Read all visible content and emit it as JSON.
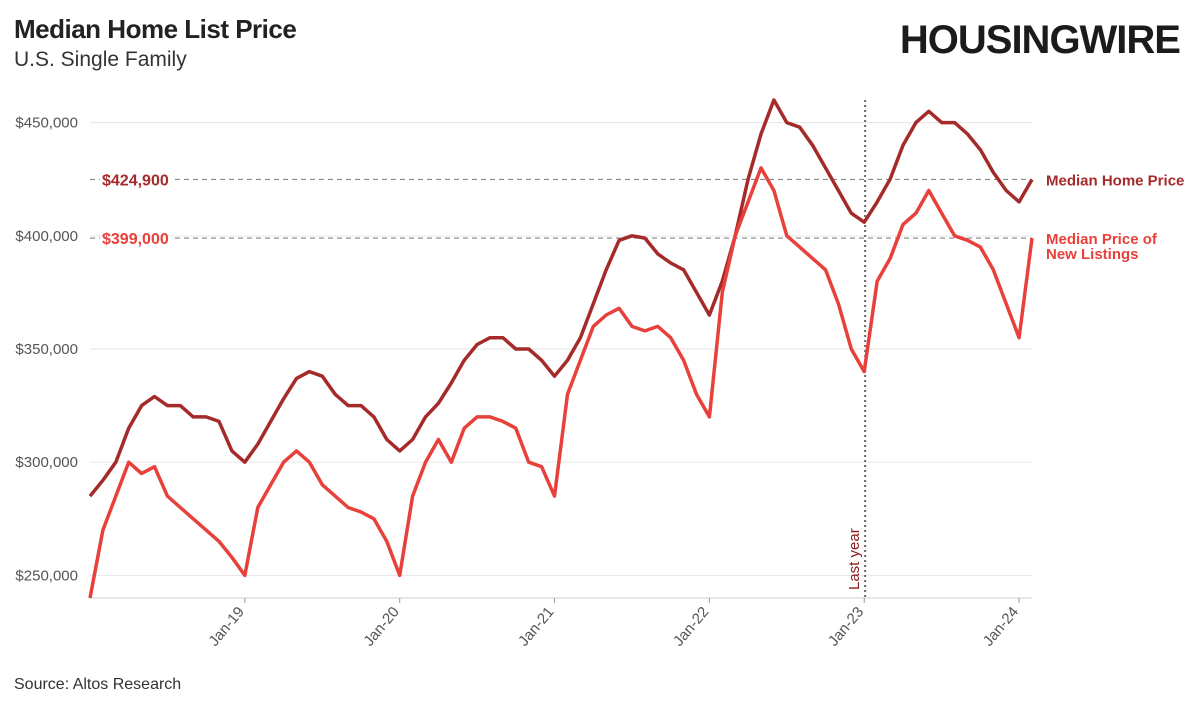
{
  "header": {
    "title": "Median Home List Price",
    "subtitle": "U.S. Single Family",
    "logo": "HOUSINGWIRE"
  },
  "footer": {
    "source": "Source: Altos Research"
  },
  "colors": {
    "home_price": "#a52a2a",
    "new_listings": "#e8403a",
    "grid": "#e6e6e6",
    "reference": "#888888"
  },
  "chart_data": {
    "type": "line",
    "title": "Median Home List Price",
    "subtitle": "U.S. Single Family",
    "xlabel": "",
    "ylabel": "",
    "ylim": [
      240000,
      460000
    ],
    "xlim": [
      "2018-01",
      "2024-02"
    ],
    "y_ticks": [
      {
        "value": 250000,
        "label": "$250,000"
      },
      {
        "value": 300000,
        "label": "$300,000"
      },
      {
        "value": 350000,
        "label": "$350,000"
      },
      {
        "value": 400000,
        "label": "$400,000"
      },
      {
        "value": 450000,
        "label": "$450,000"
      }
    ],
    "x_ticks": [
      {
        "date": "2019-01",
        "label": "Jan-19"
      },
      {
        "date": "2020-01",
        "label": "Jan-20"
      },
      {
        "date": "2021-01",
        "label": "Jan-21"
      },
      {
        "date": "2022-01",
        "label": "Jan-22"
      },
      {
        "date": "2023-01",
        "label": "Jan-23"
      },
      {
        "date": "2024-01",
        "label": "Jan-24"
      }
    ],
    "grid": true,
    "reference_lines": [
      {
        "value": 424900,
        "label": "$424,900",
        "series": "home"
      },
      {
        "value": 399000,
        "label": "$399,000",
        "series": "new"
      }
    ],
    "annotations": [
      {
        "date": "2023-02",
        "label": "Last year"
      }
    ],
    "series": [
      {
        "name": "Median Home Price",
        "key": "home",
        "points": [
          [
            "2018-01",
            285000
          ],
          [
            "2018-02",
            292000
          ],
          [
            "2018-03",
            300000
          ],
          [
            "2018-04",
            315000
          ],
          [
            "2018-05",
            325000
          ],
          [
            "2018-06",
            329000
          ],
          [
            "2018-07",
            325000
          ],
          [
            "2018-08",
            325000
          ],
          [
            "2018-09",
            320000
          ],
          [
            "2018-10",
            320000
          ],
          [
            "2018-11",
            318000
          ],
          [
            "2018-12",
            305000
          ],
          [
            "2019-01",
            300000
          ],
          [
            "2019-02",
            308000
          ],
          [
            "2019-03",
            318000
          ],
          [
            "2019-04",
            328000
          ],
          [
            "2019-05",
            337000
          ],
          [
            "2019-06",
            340000
          ],
          [
            "2019-07",
            338000
          ],
          [
            "2019-08",
            330000
          ],
          [
            "2019-09",
            325000
          ],
          [
            "2019-10",
            325000
          ],
          [
            "2019-11",
            320000
          ],
          [
            "2019-12",
            310000
          ],
          [
            "2020-01",
            305000
          ],
          [
            "2020-02",
            310000
          ],
          [
            "2020-03",
            320000
          ],
          [
            "2020-04",
            326000
          ],
          [
            "2020-05",
            335000
          ],
          [
            "2020-06",
            345000
          ],
          [
            "2020-07",
            352000
          ],
          [
            "2020-08",
            355000
          ],
          [
            "2020-09",
            355000
          ],
          [
            "2020-10",
            350000
          ],
          [
            "2020-11",
            350000
          ],
          [
            "2020-12",
            345000
          ],
          [
            "2021-01",
            338000
          ],
          [
            "2021-02",
            345000
          ],
          [
            "2021-03",
            355000
          ],
          [
            "2021-04",
            370000
          ],
          [
            "2021-05",
            385000
          ],
          [
            "2021-06",
            398000
          ],
          [
            "2021-07",
            400000
          ],
          [
            "2021-08",
            399000
          ],
          [
            "2021-09",
            392000
          ],
          [
            "2021-10",
            388000
          ],
          [
            "2021-11",
            385000
          ],
          [
            "2021-12",
            375000
          ],
          [
            "2022-01",
            365000
          ],
          [
            "2022-02",
            380000
          ],
          [
            "2022-03",
            400000
          ],
          [
            "2022-04",
            425000
          ],
          [
            "2022-05",
            445000
          ],
          [
            "2022-06",
            460000
          ],
          [
            "2022-07",
            450000
          ],
          [
            "2022-08",
            448000
          ],
          [
            "2022-09",
            440000
          ],
          [
            "2022-10",
            430000
          ],
          [
            "2022-11",
            420000
          ],
          [
            "2022-12",
            410000
          ],
          [
            "2023-01",
            406000
          ],
          [
            "2023-02",
            415000
          ],
          [
            "2023-03",
            425000
          ],
          [
            "2023-04",
            440000
          ],
          [
            "2023-05",
            450000
          ],
          [
            "2023-06",
            455000
          ],
          [
            "2023-07",
            450000
          ],
          [
            "2023-08",
            450000
          ],
          [
            "2023-09",
            445000
          ],
          [
            "2023-10",
            438000
          ],
          [
            "2023-11",
            428000
          ],
          [
            "2023-12",
            420000
          ],
          [
            "2024-01",
            415000
          ],
          [
            "2024-02",
            424900
          ]
        ]
      },
      {
        "name": "Median Price of New Listings",
        "key": "new",
        "label_lines": [
          "Median Price of",
          "New Listings"
        ],
        "points": [
          [
            "2018-01",
            240000
          ],
          [
            "2018-02",
            270000
          ],
          [
            "2018-03",
            285000
          ],
          [
            "2018-04",
            300000
          ],
          [
            "2018-05",
            295000
          ],
          [
            "2018-06",
            298000
          ],
          [
            "2018-07",
            285000
          ],
          [
            "2018-08",
            280000
          ],
          [
            "2018-09",
            275000
          ],
          [
            "2018-10",
            270000
          ],
          [
            "2018-11",
            265000
          ],
          [
            "2018-12",
            258000
          ],
          [
            "2019-01",
            250000
          ],
          [
            "2019-02",
            280000
          ],
          [
            "2019-03",
            290000
          ],
          [
            "2019-04",
            300000
          ],
          [
            "2019-05",
            305000
          ],
          [
            "2019-06",
            300000
          ],
          [
            "2019-07",
            290000
          ],
          [
            "2019-08",
            285000
          ],
          [
            "2019-09",
            280000
          ],
          [
            "2019-10",
            278000
          ],
          [
            "2019-11",
            275000
          ],
          [
            "2019-12",
            265000
          ],
          [
            "2020-01",
            250000
          ],
          [
            "2020-02",
            285000
          ],
          [
            "2020-03",
            300000
          ],
          [
            "2020-04",
            310000
          ],
          [
            "2020-05",
            300000
          ],
          [
            "2020-06",
            315000
          ],
          [
            "2020-07",
            320000
          ],
          [
            "2020-08",
            320000
          ],
          [
            "2020-09",
            318000
          ],
          [
            "2020-10",
            315000
          ],
          [
            "2020-11",
            300000
          ],
          [
            "2020-12",
            298000
          ],
          [
            "2021-01",
            285000
          ],
          [
            "2021-02",
            330000
          ],
          [
            "2021-03",
            345000
          ],
          [
            "2021-04",
            360000
          ],
          [
            "2021-05",
            365000
          ],
          [
            "2021-06",
            368000
          ],
          [
            "2021-07",
            360000
          ],
          [
            "2021-08",
            358000
          ],
          [
            "2021-09",
            360000
          ],
          [
            "2021-10",
            355000
          ],
          [
            "2021-11",
            345000
          ],
          [
            "2021-12",
            330000
          ],
          [
            "2022-01",
            320000
          ],
          [
            "2022-02",
            375000
          ],
          [
            "2022-03",
            400000
          ],
          [
            "2022-04",
            415000
          ],
          [
            "2022-05",
            430000
          ],
          [
            "2022-06",
            420000
          ],
          [
            "2022-07",
            400000
          ],
          [
            "2022-08",
            395000
          ],
          [
            "2022-09",
            390000
          ],
          [
            "2022-10",
            385000
          ],
          [
            "2022-11",
            370000
          ],
          [
            "2022-12",
            350000
          ],
          [
            "2023-01",
            340000
          ],
          [
            "2023-02",
            380000
          ],
          [
            "2023-03",
            390000
          ],
          [
            "2023-04",
            405000
          ],
          [
            "2023-05",
            410000
          ],
          [
            "2023-06",
            420000
          ],
          [
            "2023-07",
            410000
          ],
          [
            "2023-08",
            400000
          ],
          [
            "2023-09",
            398000
          ],
          [
            "2023-10",
            395000
          ],
          [
            "2023-11",
            385000
          ],
          [
            "2023-12",
            370000
          ],
          [
            "2024-01",
            355000
          ],
          [
            "2024-02",
            399000
          ]
        ]
      }
    ]
  }
}
